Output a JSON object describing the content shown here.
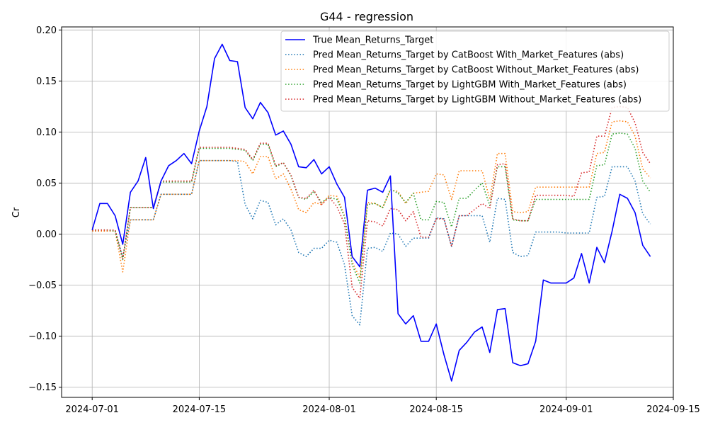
{
  "chart_data": {
    "type": "line",
    "title": "G44 - regression",
    "xlabel": "",
    "ylabel": "Cr",
    "x_type": "date",
    "xlim": [
      "2024-06-27",
      "2024-09-15"
    ],
    "ylim": [
      -0.16,
      0.203
    ],
    "xticks": [
      {
        "date": "2024-07-01",
        "label": "2024-07-01"
      },
      {
        "date": "2024-07-15",
        "label": "2024-07-15"
      },
      {
        "date": "2024-08-01",
        "label": "2024-08-01"
      },
      {
        "date": "2024-08-15",
        "label": "2024-08-15"
      },
      {
        "date": "2024-09-01",
        "label": "2024-09-01"
      },
      {
        "date": "2024-09-15",
        "label": "2024-09-15"
      }
    ],
    "yticks": [
      {
        "value": 0.2,
        "label": "0.20"
      },
      {
        "value": 0.15,
        "label": "0.15"
      },
      {
        "value": 0.1,
        "label": "0.10"
      },
      {
        "value": 0.05,
        "label": "0.05"
      },
      {
        "value": 0.0,
        "label": "0.00"
      },
      {
        "value": -0.05,
        "label": "−0.05"
      },
      {
        "value": -0.1,
        "label": "−0.10"
      },
      {
        "value": -0.15,
        "label": "−0.15"
      }
    ],
    "grid": true,
    "legend_position": "top-right",
    "x": [
      "2024-07-01",
      "2024-07-02",
      "2024-07-03",
      "2024-07-04",
      "2024-07-05",
      "2024-07-06",
      "2024-07-07",
      "2024-07-08",
      "2024-07-09",
      "2024-07-10",
      "2024-07-11",
      "2024-07-12",
      "2024-07-13",
      "2024-07-14",
      "2024-07-15",
      "2024-07-16",
      "2024-07-17",
      "2024-07-18",
      "2024-07-19",
      "2024-07-20",
      "2024-07-21",
      "2024-07-22",
      "2024-07-23",
      "2024-07-24",
      "2024-07-25",
      "2024-07-26",
      "2024-07-27",
      "2024-07-28",
      "2024-07-29",
      "2024-07-30",
      "2024-07-31",
      "2024-08-01",
      "2024-08-02",
      "2024-08-03",
      "2024-08-04",
      "2024-08-05",
      "2024-08-06",
      "2024-08-07",
      "2024-08-08",
      "2024-08-09",
      "2024-08-10",
      "2024-08-11",
      "2024-08-12",
      "2024-08-13",
      "2024-08-14",
      "2024-08-15",
      "2024-08-16",
      "2024-08-17",
      "2024-08-18",
      "2024-08-19",
      "2024-08-20",
      "2024-08-21",
      "2024-08-22",
      "2024-08-23",
      "2024-08-24",
      "2024-08-25",
      "2024-08-26",
      "2024-08-27",
      "2024-08-28",
      "2024-08-29",
      "2024-08-30",
      "2024-08-31",
      "2024-09-01",
      "2024-09-02",
      "2024-09-03",
      "2024-09-04",
      "2024-09-05",
      "2024-09-06",
      "2024-09-07",
      "2024-09-08",
      "2024-09-09",
      "2024-09-10",
      "2024-09-11",
      "2024-09-12"
    ],
    "series": [
      {
        "name": "True Mean_Returns_Target",
        "color": "#0000ff",
        "style": "solid",
        "values": [
          0.004,
          0.03,
          0.03,
          0.018,
          -0.01,
          0.041,
          0.052,
          0.075,
          0.025,
          0.052,
          0.067,
          0.072,
          0.079,
          0.069,
          0.101,
          0.125,
          0.172,
          0.186,
          0.17,
          0.169,
          0.124,
          0.113,
          0.129,
          0.119,
          0.097,
          0.101,
          0.088,
          0.066,
          0.065,
          0.073,
          0.059,
          0.066,
          0.049,
          0.036,
          -0.022,
          -0.032,
          0.043,
          0.045,
          0.041,
          0.057,
          -0.078,
          -0.088,
          -0.08,
          -0.105,
          -0.105,
          -0.088,
          -0.118,
          -0.144,
          -0.114,
          -0.106,
          -0.096,
          -0.091,
          -0.116,
          -0.074,
          -0.073,
          -0.126,
          -0.129,
          -0.127,
          -0.105,
          -0.045,
          -0.048,
          -0.048,
          -0.048,
          -0.043,
          -0.019,
          -0.048,
          -0.013,
          -0.028,
          0.003,
          0.039,
          0.035,
          0.021,
          -0.011,
          -0.022
        ]
      },
      {
        "name": "Pred Mean_Returns_Target by CatBoost With_Market_Features (abs)",
        "color": "#1f77b4",
        "style": "dotted",
        "values": [
          0.003,
          0.003,
          0.003,
          0.003,
          -0.022,
          0.014,
          0.014,
          0.014,
          0.014,
          0.039,
          0.039,
          0.039,
          0.039,
          0.039,
          0.072,
          0.072,
          0.072,
          0.072,
          0.072,
          0.071,
          0.029,
          0.015,
          0.033,
          0.031,
          0.009,
          0.015,
          0.004,
          -0.018,
          -0.022,
          -0.014,
          -0.014,
          -0.006,
          -0.008,
          -0.03,
          -0.08,
          -0.089,
          -0.014,
          -0.013,
          -0.017,
          0.001,
          0.0,
          -0.012,
          -0.004,
          -0.004,
          -0.004,
          0.016,
          0.015,
          -0.012,
          0.018,
          0.018,
          0.018,
          0.018,
          -0.008,
          0.035,
          0.034,
          -0.018,
          -0.022,
          -0.021,
          0.002,
          0.002,
          0.002,
          0.002,
          0.001,
          0.001,
          0.001,
          0.001,
          0.036,
          0.037,
          0.066,
          0.066,
          0.066,
          0.052,
          0.02,
          0.01
        ]
      },
      {
        "name": "Pred Mean_Returns_Target by CatBoost Without_Market_Features (abs)",
        "color": "#ff7f0e",
        "style": "dotted",
        "values": [
          0.003,
          0.003,
          0.003,
          0.003,
          -0.037,
          0.014,
          0.014,
          0.014,
          0.014,
          0.039,
          0.039,
          0.039,
          0.039,
          0.039,
          0.072,
          0.072,
          0.072,
          0.072,
          0.072,
          0.072,
          0.071,
          0.059,
          0.076,
          0.076,
          0.054,
          0.059,
          0.044,
          0.024,
          0.021,
          0.031,
          0.029,
          0.038,
          0.037,
          0.018,
          -0.027,
          -0.043,
          0.031,
          0.03,
          0.026,
          0.043,
          0.042,
          0.03,
          0.04,
          0.041,
          0.042,
          0.059,
          0.058,
          0.034,
          0.062,
          0.062,
          0.062,
          0.062,
          0.034,
          0.079,
          0.079,
          0.022,
          0.021,
          0.022,
          0.046,
          0.046,
          0.046,
          0.046,
          0.046,
          0.046,
          0.046,
          0.046,
          0.079,
          0.08,
          0.11,
          0.111,
          0.11,
          0.096,
          0.064,
          0.055
        ]
      },
      {
        "name": "Pred Mean_Returns_Target by LightGBM With_Market_Features (abs)",
        "color": "#2ca02c",
        "style": "dotted",
        "values": [
          0.004,
          0.004,
          0.004,
          0.003,
          -0.025,
          0.026,
          0.026,
          0.026,
          0.026,
          0.051,
          0.051,
          0.051,
          0.051,
          0.051,
          0.084,
          0.084,
          0.084,
          0.084,
          0.084,
          0.083,
          0.082,
          0.072,
          0.088,
          0.088,
          0.066,
          0.07,
          0.057,
          0.036,
          0.034,
          0.042,
          0.031,
          0.036,
          0.034,
          0.017,
          -0.03,
          -0.048,
          0.029,
          0.03,
          0.026,
          0.044,
          0.04,
          0.031,
          0.04,
          0.014,
          0.014,
          0.032,
          0.031,
          0.007,
          0.035,
          0.035,
          0.043,
          0.05,
          0.028,
          0.066,
          0.066,
          0.014,
          0.013,
          0.013,
          0.034,
          0.034,
          0.034,
          0.034,
          0.034,
          0.034,
          0.034,
          0.034,
          0.067,
          0.068,
          0.098,
          0.099,
          0.098,
          0.084,
          0.052,
          0.041
        ]
      },
      {
        "name": "Pred Mean_Returns_Target by LightGBM Without_Market_Features (abs)",
        "color": "#d62728",
        "style": "dotted",
        "values": [
          0.004,
          0.004,
          0.004,
          0.004,
          -0.024,
          0.026,
          0.026,
          0.026,
          0.026,
          0.052,
          0.052,
          0.052,
          0.052,
          0.052,
          0.085,
          0.085,
          0.085,
          0.085,
          0.085,
          0.084,
          0.083,
          0.073,
          0.089,
          0.089,
          0.067,
          0.07,
          0.058,
          0.036,
          0.035,
          0.043,
          0.029,
          0.036,
          0.027,
          0.01,
          -0.052,
          -0.063,
          0.013,
          0.012,
          0.008,
          0.025,
          0.024,
          0.013,
          0.022,
          -0.003,
          -0.003,
          0.015,
          0.015,
          -0.012,
          0.018,
          0.018,
          0.024,
          0.03,
          0.025,
          0.068,
          0.069,
          0.015,
          0.013,
          0.013,
          0.038,
          0.038,
          0.038,
          0.038,
          0.038,
          0.037,
          0.06,
          0.061,
          0.096,
          0.096,
          0.124,
          0.125,
          0.124,
          0.109,
          0.08,
          0.069
        ]
      }
    ]
  }
}
